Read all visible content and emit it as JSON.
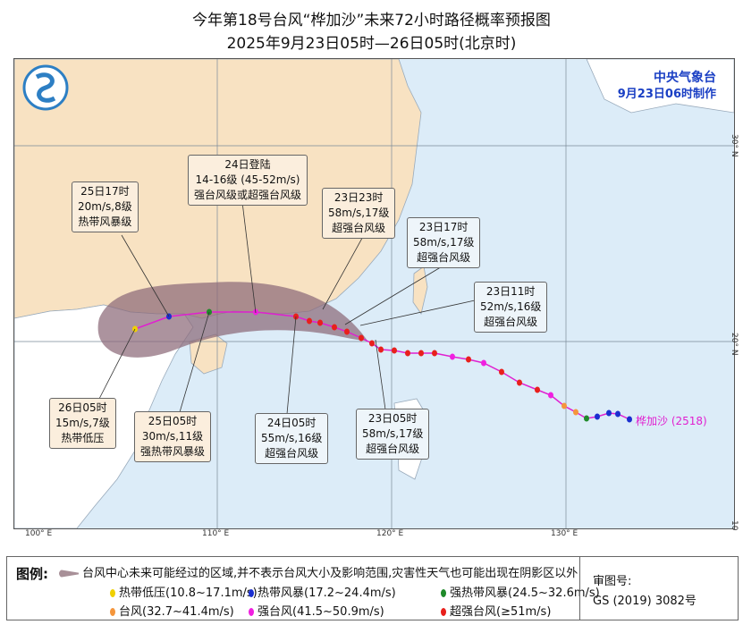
{
  "title": "今年第18号台风“桦加沙”未来72小时路径概率预报图",
  "subtitle": "2025年9月23日05时—26日05时(北京时)",
  "agency": {
    "name": "中央气象台",
    "made": "9月23日06时制作"
  },
  "axes": {
    "longitude": [
      "100° E",
      "110° E",
      "120° E",
      "130° E"
    ],
    "latitude": [
      "30° N",
      "20° N",
      "10"
    ]
  },
  "typhoon_name": "桦加沙 (2518)",
  "callouts": [
    {
      "lines": [
        "25日17时",
        "20m/s,8级",
        "热带风暴级"
      ]
    },
    {
      "lines": [
        "24日登陆",
        "14-16级 (45-52m/s)",
        "强台风级或超强台风级"
      ]
    },
    {
      "lines": [
        "23日23时",
        "58m/s,17级",
        "超强台风级"
      ]
    },
    {
      "lines": [
        "23日17时",
        "58m/s,17级",
        "超强台风级"
      ]
    },
    {
      "lines": [
        "23日11时",
        "52m/s,16级",
        "超强台风级"
      ]
    },
    {
      "lines": [
        "26日05时",
        "15m/s,7级",
        "热带低压"
      ]
    },
    {
      "lines": [
        "25日05时",
        "30m/s,11级",
        "强热带风暴级"
      ]
    },
    {
      "lines": [
        "24日05时",
        "55m/s,16级",
        "超强台风级"
      ]
    },
    {
      "lines": [
        "23日05时",
        "58m/s,17级",
        "超强台风级"
      ]
    }
  ],
  "legend": {
    "label": "图例:",
    "cone_text": "台风中心未来可能经过的区域,并不表示台风大小及影响范围,灾害性天气也可能出现在阴影区以外",
    "categories": [
      {
        "text": "热带低压(10.8~17.1m/s)",
        "color": "#f0d000"
      },
      {
        "text": "热带风暴(17.2~24.4m/s)",
        "color": "#1a2fd0"
      },
      {
        "text": "强热带风暴(24.5~32.6m/s)",
        "color": "#1f8a2a"
      },
      {
        "text": "台风(32.7~41.4m/s)",
        "color": "#f5963c"
      },
      {
        "text": "强台风(41.5~50.9m/s)",
        "color": "#f020e0"
      },
      {
        "text": "超强台风(≥51m/s)",
        "color": "#e8201c"
      }
    ]
  },
  "approval": {
    "label": "审图号:",
    "number": "GS (2019) 3082号"
  },
  "colors": {
    "land": "#f8e2c2",
    "sea": "#dcecf8",
    "cone": "#8c6a78",
    "track": "#e020d0"
  }
}
